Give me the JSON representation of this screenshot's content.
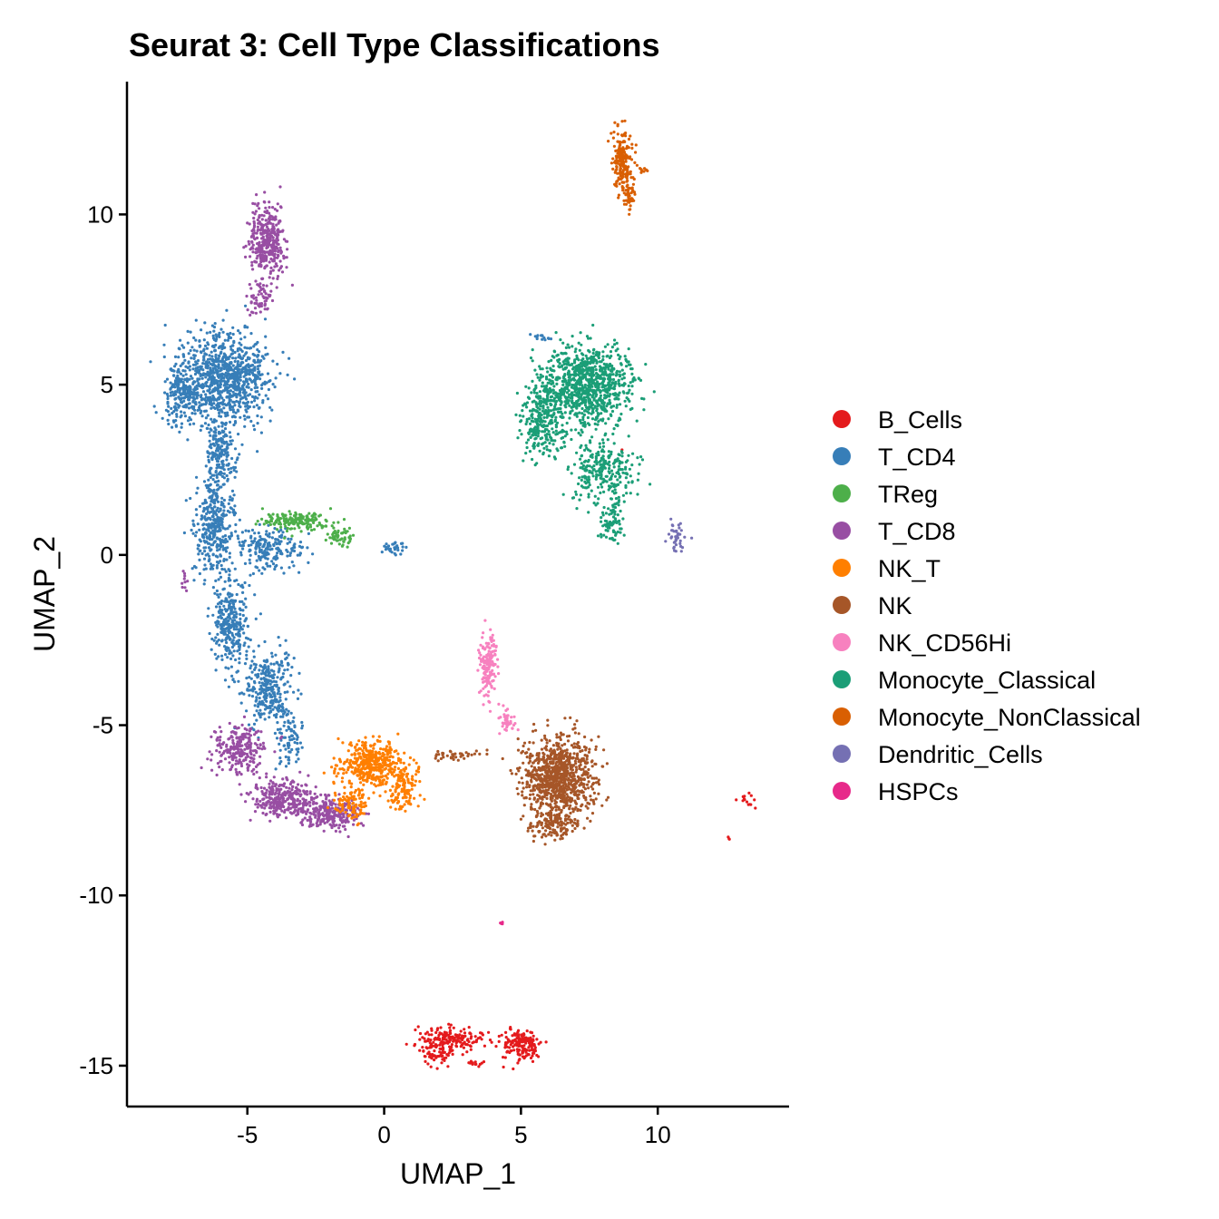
{
  "chart_data": {
    "type": "scatter",
    "title": "Seurat 3: Cell Type Classifications",
    "xlabel": "UMAP_1",
    "ylabel": "UMAP_2",
    "xlim": [
      -9.4,
      14.8
    ],
    "ylim": [
      -16.2,
      13.9
    ],
    "x_ticks": [
      -5,
      0,
      5,
      10
    ],
    "y_ticks": [
      -15,
      -10,
      -5,
      0,
      5,
      10
    ],
    "grid": false,
    "legend_position": "right",
    "series": [
      {
        "name": "B_Cells",
        "color": "#E41A1C",
        "clusters": [
          {
            "x": 2.6,
            "y": -14.2,
            "sx": 0.9,
            "sy": 0.25,
            "n": 160
          },
          {
            "x": 5.0,
            "y": -14.4,
            "sx": 0.45,
            "sy": 0.3,
            "n": 160
          },
          {
            "x": 1.9,
            "y": -14.6,
            "sx": 0.35,
            "sy": 0.3,
            "n": 70
          },
          {
            "x": 3.3,
            "y": -14.9,
            "sx": 0.3,
            "sy": 0.05,
            "n": 14
          },
          {
            "x": 13.2,
            "y": -7.2,
            "sx": 0.2,
            "sy": 0.18,
            "n": 14
          },
          {
            "x": 12.6,
            "y": -8.3,
            "sx": 0.05,
            "sy": 0.05,
            "n": 3
          },
          {
            "x": 8.7,
            "y": 3.1,
            "sx": 0.02,
            "sy": 0.02,
            "n": 1
          }
        ]
      },
      {
        "name": "T_CD4",
        "color": "#377EB8",
        "clusters": [
          {
            "x": -5.8,
            "y": 5.2,
            "sx": 1.05,
            "sy": 0.9,
            "n": 900
          },
          {
            "x": -7.4,
            "y": 4.8,
            "sx": 0.45,
            "sy": 0.6,
            "n": 220
          },
          {
            "x": -6.0,
            "y": 3.0,
            "sx": 0.35,
            "sy": 0.6,
            "n": 160
          },
          {
            "x": -6.2,
            "y": 0.9,
            "sx": 0.5,
            "sy": 0.9,
            "n": 380
          },
          {
            "x": -4.2,
            "y": 0.2,
            "sx": 0.9,
            "sy": 0.4,
            "n": 200
          },
          {
            "x": -5.6,
            "y": -2.0,
            "sx": 0.45,
            "sy": 0.9,
            "n": 300
          },
          {
            "x": -4.2,
            "y": -3.9,
            "sx": 0.6,
            "sy": 0.7,
            "n": 300
          },
          {
            "x": -3.5,
            "y": -5.4,
            "sx": 0.3,
            "sy": 0.5,
            "n": 80
          },
          {
            "x": 0.3,
            "y": 0.2,
            "sx": 0.25,
            "sy": 0.12,
            "n": 30
          },
          {
            "x": 5.7,
            "y": 6.4,
            "sx": 0.3,
            "sy": 0.06,
            "n": 14
          }
        ]
      },
      {
        "name": "TReg",
        "color": "#4DAF4A",
        "clusters": [
          {
            "x": -3.2,
            "y": 1.0,
            "sx": 0.8,
            "sy": 0.18,
            "n": 170
          },
          {
            "x": -1.6,
            "y": 0.5,
            "sx": 0.35,
            "sy": 0.2,
            "n": 50
          }
        ]
      },
      {
        "name": "T_CD8",
        "color": "#984EA3",
        "clusters": [
          {
            "x": -4.3,
            "y": 9.2,
            "sx": 0.42,
            "sy": 0.7,
            "n": 380
          },
          {
            "x": -4.6,
            "y": 7.5,
            "sx": 0.3,
            "sy": 0.3,
            "n": 60
          },
          {
            "x": -5.3,
            "y": -5.7,
            "sx": 0.65,
            "sy": 0.5,
            "n": 240
          },
          {
            "x": -3.7,
            "y": -7.2,
            "sx": 0.75,
            "sy": 0.38,
            "n": 320
          },
          {
            "x": -2.0,
            "y": -7.6,
            "sx": 0.7,
            "sy": 0.3,
            "n": 260
          },
          {
            "x": -7.3,
            "y": -0.8,
            "sx": 0.08,
            "sy": 0.3,
            "n": 10
          }
        ]
      },
      {
        "name": "NK_T",
        "color": "#FF7F00",
        "clusters": [
          {
            "x": -0.5,
            "y": -6.1,
            "sx": 0.8,
            "sy": 0.45,
            "n": 420
          },
          {
            "x": 0.7,
            "y": -6.9,
            "sx": 0.4,
            "sy": 0.4,
            "n": 120
          },
          {
            "x": -1.1,
            "y": -7.3,
            "sx": 0.45,
            "sy": 0.3,
            "n": 90
          }
        ]
      },
      {
        "name": "NK",
        "color": "#A65628",
        "clusters": [
          {
            "x": 6.4,
            "y": -6.5,
            "sx": 0.85,
            "sy": 0.75,
            "n": 900
          },
          {
            "x": 6.2,
            "y": -7.9,
            "sx": 0.6,
            "sy": 0.3,
            "n": 150
          },
          {
            "x": 2.6,
            "y": -5.9,
            "sx": 0.8,
            "sy": 0.12,
            "n": 40
          }
        ]
      },
      {
        "name": "NK_CD56Hi",
        "color": "#F781BF",
        "clusters": [
          {
            "x": 3.8,
            "y": -3.3,
            "sx": 0.2,
            "sy": 0.55,
            "n": 160
          },
          {
            "x": 4.5,
            "y": -4.8,
            "sx": 0.25,
            "sy": 0.25,
            "n": 40
          }
        ]
      },
      {
        "name": "Monocyte_Classical",
        "color": "#1B9E77",
        "clusters": [
          {
            "x": 7.4,
            "y": 5.0,
            "sx": 1.0,
            "sy": 0.8,
            "n": 900
          },
          {
            "x": 5.8,
            "y": 4.0,
            "sx": 0.5,
            "sy": 0.8,
            "n": 300
          },
          {
            "x": 8.0,
            "y": 2.4,
            "sx": 0.8,
            "sy": 0.6,
            "n": 260
          },
          {
            "x": 8.3,
            "y": 1.0,
            "sx": 0.3,
            "sy": 0.4,
            "n": 80
          }
        ]
      },
      {
        "name": "Monocyte_NonClassical",
        "color": "#D95F02",
        "clusters": [
          {
            "x": 8.7,
            "y": 11.6,
            "sx": 0.22,
            "sy": 0.55,
            "n": 200
          },
          {
            "x": 9.0,
            "y": 10.5,
            "sx": 0.15,
            "sy": 0.25,
            "n": 40
          },
          {
            "x": 9.5,
            "y": 11.3,
            "sx": 0.15,
            "sy": 0.05,
            "n": 8
          }
        ]
      },
      {
        "name": "Dendritic_Cells",
        "color": "#7570B3",
        "clusters": [
          {
            "x": 10.7,
            "y": 0.5,
            "sx": 0.2,
            "sy": 0.3,
            "n": 40
          }
        ]
      },
      {
        "name": "HSPCs",
        "color": "#E7298A",
        "clusters": [
          {
            "x": 4.3,
            "y": -10.8,
            "sx": 0.03,
            "sy": 0.03,
            "n": 4
          }
        ]
      }
    ]
  }
}
